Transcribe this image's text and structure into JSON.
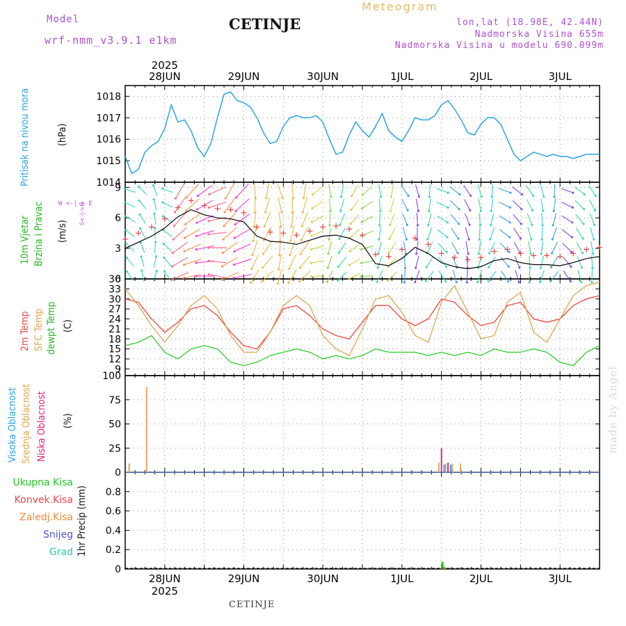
{
  "header": {
    "model_label": "Model",
    "model_name": "wrf-nmm_v3.9.1 e1km",
    "station": "CETINJE",
    "meteogram": "Meteogram",
    "coords": "lon,lat (18.98E, 42.44N)",
    "altitude": "Nadmorska Visina 655m",
    "model_altitude": "Nadmorska Visina u modelu 690.099m"
  },
  "time_axis": {
    "year": "2025",
    "days": [
      "28JUN",
      "29JUN",
      "30JUN",
      "1JUL",
      "2JUL",
      "3JUL"
    ]
  },
  "footer": {
    "station": "CETINJE",
    "credit": "made by Angel"
  },
  "panels": {
    "pressure": {
      "label": "Pritisak na nivou mora",
      "unit": "(hPa)"
    },
    "wind": {
      "label1": "10m Vjetar",
      "label2": "Brzina i Pravac",
      "unit": "(m/s)",
      "compass": "W <-|-> E",
      "compass2": "S<-|->N"
    },
    "temp": {
      "label1": "2m Temp",
      "label2": "SFC Temp",
      "label3": "dewpt Temp",
      "unit": "(C)"
    },
    "cloud": {
      "label1": "Visoka Oblacnost",
      "label2": "Srednja Oblacnost",
      "label3": "Niska Oblacnost",
      "unit": "(%)"
    },
    "precip": {
      "unit": "1hr Precip (mm)",
      "legend": [
        "Ukupna Kisa",
        "Konvek.Kisa",
        "Zaledj.Kisa",
        "Snijeg",
        "Grad"
      ]
    }
  },
  "colors": {
    "pressure": "#29a3e4",
    "temp2m": "#e8463c",
    "sfc": "#dea54e",
    "dewpt": "#2ccd2c",
    "wind_speed": "#000000",
    "gust": "#f04040",
    "cloud_high": "#3aa0dc",
    "cloud_mid": "#dfa556",
    "cloud_low": "#e0208a",
    "rain": "#22c822",
    "conv": "#ee4444",
    "frz": "#f28a3a",
    "snow": "#5050dd",
    "hail": "#30c8b0"
  },
  "chart_data": [
    {
      "type": "line",
      "name": "pressure",
      "ylim": [
        1014,
        1018.5
      ],
      "yticks": [
        1014,
        1015,
        1016,
        1017,
        1018
      ],
      "xlim": [
        0,
        144
      ],
      "x": [
        0,
        2,
        4,
        6,
        8,
        10,
        12,
        14,
        16,
        18,
        20,
        22,
        24,
        26,
        28,
        30,
        32,
        34,
        36,
        38,
        40,
        42,
        44,
        46,
        48,
        50,
        52,
        54,
        56,
        58,
        60,
        62,
        64,
        66,
        68,
        70,
        72,
        74,
        76,
        78,
        80,
        82,
        84,
        86,
        88,
        90,
        92,
        94,
        96,
        98,
        100,
        102,
        104,
        106,
        108,
        110,
        112,
        114,
        116,
        118,
        120,
        122,
        124,
        126,
        128,
        130,
        132,
        134,
        136,
        138,
        140,
        142,
        144
      ],
      "series": [
        {
          "values": [
            1015.2,
            1014.4,
            1014.6,
            1015.4,
            1015.7,
            1015.9,
            1016.5,
            1017.6,
            1016.8,
            1016.9,
            1016.4,
            1015.6,
            1015.2,
            1015.8,
            1017.0,
            1018.1,
            1018.2,
            1017.8,
            1017.7,
            1017.5,
            1017.0,
            1016.3,
            1015.8,
            1015.9,
            1016.6,
            1017.0,
            1017.1,
            1017.0,
            1017.0,
            1017.1,
            1016.8,
            1016.0,
            1015.3,
            1015.4,
            1016.2,
            1016.8,
            1016.4,
            1016.1,
            1016.6,
            1017.2,
            1016.4,
            1016.1,
            1015.9,
            1016.4,
            1017.0,
            1016.9,
            1016.9,
            1017.1,
            1017.6,
            1017.8,
            1017.4,
            1016.9,
            1016.3,
            1016.2,
            1016.7,
            1017.0,
            1017.0,
            1016.7,
            1016.0,
            1015.3,
            1015.0,
            1015.2,
            1015.4,
            1015.3,
            1015.2,
            1015.3,
            1015.2,
            1015.2,
            1015.1,
            1015.2,
            1015.3,
            1015.3,
            1015.3
          ]
        }
      ]
    },
    {
      "type": "line",
      "name": "wind",
      "ylim": [
        0,
        9.5
      ],
      "yticks": [
        0,
        3,
        6,
        9
      ],
      "xlim": [
        0,
        144
      ],
      "x": [
        0,
        4,
        8,
        12,
        16,
        20,
        24,
        28,
        32,
        36,
        40,
        44,
        48,
        52,
        56,
        60,
        64,
        68,
        72,
        76,
        80,
        84,
        88,
        92,
        96,
        100,
        104,
        108,
        112,
        116,
        120,
        124,
        128,
        132,
        136,
        140,
        144
      ],
      "series": [
        {
          "values": [
            3.0,
            3.6,
            4.2,
            5.0,
            6.1,
            6.8,
            6.3,
            6.0,
            5.9,
            5.6,
            4.2,
            3.7,
            3.6,
            3.4,
            3.8,
            4.2,
            4.3,
            4.0,
            3.4,
            1.5,
            1.3,
            2.0,
            3.1,
            2.5,
            1.6,
            1.2,
            1.0,
            1.2,
            1.8,
            2.0,
            1.6,
            1.4,
            1.4,
            1.3,
            1.6,
            2.0,
            2.2
          ]
        }
      ]
    },
    {
      "type": "line",
      "name": "temperature",
      "ylim": [
        7,
        36
      ],
      "yticks": [
        9,
        12,
        15,
        18,
        21,
        24,
        27,
        30,
        33,
        36
      ],
      "xlim": [
        0,
        144
      ],
      "x": [
        0,
        4,
        8,
        12,
        16,
        20,
        24,
        28,
        32,
        36,
        40,
        44,
        48,
        52,
        56,
        60,
        64,
        68,
        72,
        76,
        80,
        84,
        88,
        92,
        96,
        100,
        104,
        108,
        112,
        116,
        120,
        124,
        128,
        132,
        136,
        140,
        144
      ],
      "series": [
        {
          "name": "2m Temp",
          "values": [
            30,
            29,
            24,
            20,
            23,
            27,
            28,
            25,
            20,
            16,
            15,
            20,
            27,
            28,
            25,
            21,
            19,
            18,
            23,
            28,
            28,
            24,
            22,
            24,
            30,
            29,
            25,
            22,
            23,
            28,
            29,
            24,
            23,
            24,
            28,
            30,
            31
          ]
        },
        {
          "name": "SFC Temp",
          "values": [
            33,
            28,
            22,
            17,
            22,
            28,
            31,
            27,
            19,
            14,
            14,
            20,
            28,
            31,
            28,
            19,
            15,
            13,
            21,
            30,
            31,
            26,
            19,
            17,
            29,
            34,
            26,
            18,
            19,
            29,
            32,
            20,
            17,
            24,
            31,
            34,
            35
          ]
        },
        {
          "name": "dewpt Temp",
          "values": [
            16,
            17,
            19,
            14,
            12,
            15,
            16,
            15,
            11,
            10,
            11,
            13,
            14,
            15,
            14,
            12,
            13,
            12,
            13,
            15,
            14,
            14,
            14,
            13,
            14,
            13,
            14,
            13,
            15,
            14,
            14,
            15,
            14,
            11,
            10,
            14,
            16
          ]
        }
      ]
    },
    {
      "type": "bar",
      "name": "cloud",
      "ylim": [
        0,
        100
      ],
      "yticks": [
        0,
        25,
        50,
        75,
        100
      ],
      "xlim": [
        0,
        144
      ],
      "series": [
        {
          "name": "Visoka Oblacnost",
          "x": [
            25.5,
            96.8,
            98.8
          ],
          "values": [
            1,
            8,
            8
          ]
        },
        {
          "name": "Srednja Oblacnost",
          "x": [
            1.2,
            6.5,
            95.2,
            97.3,
            99.3,
            101.8
          ],
          "values": [
            9,
            88,
            10,
            9,
            9,
            9
          ]
        },
        {
          "name": "Niska Oblacnost",
          "x": [
            96.0,
            98.0
          ],
          "values": [
            25,
            10
          ]
        }
      ]
    },
    {
      "type": "bar",
      "name": "precip",
      "ylim": [
        0,
        1.0
      ],
      "yticks": [
        0,
        0.2,
        0.4,
        0.6,
        0.8
      ],
      "xlim": [
        0,
        144
      ],
      "series": [
        {
          "name": "Ukupna Kisa",
          "x": [
            96.3,
            96.9
          ],
          "values": [
            0.075,
            0.02
          ]
        },
        {
          "name": "Konvek.Kisa",
          "x": [
            96.6
          ],
          "values": [
            0.015
          ]
        }
      ]
    }
  ]
}
